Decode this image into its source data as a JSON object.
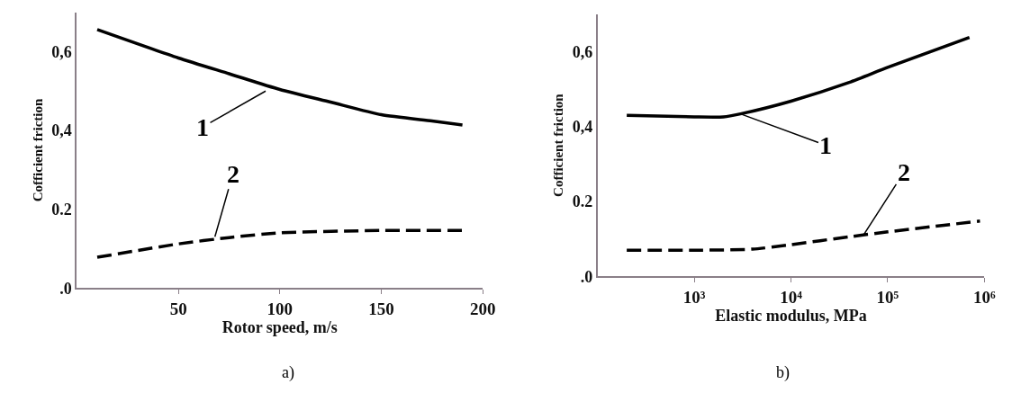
{
  "chart_data": [
    {
      "type": "line",
      "xlabel": "Rotor speed, m/s",
      "ylabel": "Cofficient friction",
      "xlim": [
        0,
        200
      ],
      "xticks": [
        50,
        100,
        150,
        200
      ],
      "ylim": [
        0,
        0.7
      ],
      "yticks": [
        {
          "value": 0,
          "label": ".0"
        },
        {
          "value": 0.2,
          "label": "0.2"
        },
        {
          "value": 0.4,
          "label": "0,4"
        },
        {
          "value": 0.6,
          "label": "0,6"
        }
      ],
      "series": [
        {
          "color": "#000000",
          "line_style": "solid",
          "x": [
            10,
            50,
            75,
            100,
            125,
            150,
            175,
            190
          ],
          "values": [
            0.656,
            0.584,
            0.544,
            0.504,
            0.472,
            0.44,
            0.424,
            0.414
          ]
        },
        {
          "color": "#000000",
          "line_style": "dashed",
          "x": [
            10,
            50,
            75,
            100,
            150,
            190
          ],
          "values": [
            0.078,
            0.112,
            0.128,
            0.14,
            0.146,
            0.146
          ]
        }
      ],
      "annotations": [
        {
          "text": "1",
          "x": 93,
          "y": 0.5
        },
        {
          "text": "2",
          "x": 68,
          "y": 0.13
        },
        "a)"
      ]
    },
    {
      "type": "line",
      "xlabel": "Elastic modulus, MPa",
      "ylabel": "Cofficient friction",
      "log": "x",
      "xlim": [
        100,
        1000000
      ],
      "xticks": [
        {
          "value": 1000,
          "label": "10³"
        },
        {
          "value": 10000,
          "label": "10⁴"
        },
        {
          "value": 100000,
          "label": "10⁵"
        },
        {
          "value": 1000000,
          "label": "10⁶"
        }
      ],
      "ylim": [
        0,
        0.7
      ],
      "yticks": [
        {
          "value": 0,
          "label": ".0"
        },
        {
          "value": 0.2,
          "label": "0.2"
        },
        {
          "value": 0.4,
          "label": "0,4"
        },
        {
          "value": 0.6,
          "label": "0,6"
        }
      ],
      "series": [
        {
          "color": "#000000",
          "line_style": "solid",
          "x": [
            200,
            1000,
            2000,
            3000,
            10000,
            40000,
            100000,
            700000
          ],
          "values": [
            0.43,
            0.426,
            0.426,
            0.434,
            0.468,
            0.518,
            0.558,
            0.638
          ]
        },
        {
          "color": "#000000",
          "line_style": "dashed",
          "x": [
            200,
            1000,
            4000,
            10000,
            40000,
            100000,
            900000
          ],
          "values": [
            0.07,
            0.07,
            0.073,
            0.085,
            0.106,
            0.119,
            0.148
          ]
        }
      ],
      "annotations": [
        {
          "text": "1",
          "x": 3000,
          "y": 0.434
        },
        {
          "text": "2",
          "x": 56000,
          "y": 0.11
        },
        "b)"
      ]
    }
  ]
}
